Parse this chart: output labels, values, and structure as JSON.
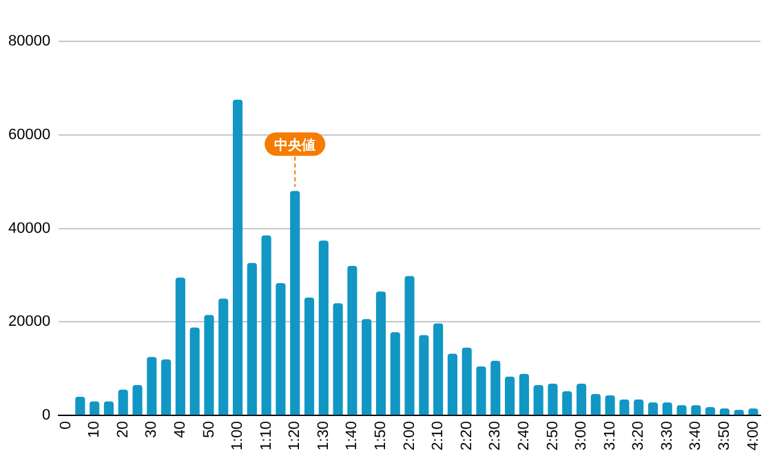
{
  "chart_data": {
    "type": "bar",
    "categories": [
      "0",
      null,
      "10",
      null,
      "20",
      null,
      "30",
      null,
      "40",
      null,
      "50",
      null,
      "1:00",
      null,
      "1:10",
      null,
      "1:20",
      null,
      "1:30",
      null,
      "1:40",
      null,
      "1:50",
      null,
      "2:00",
      null,
      "2:10",
      null,
      "2:20",
      null,
      "2:30",
      null,
      "2:40",
      null,
      "2:50",
      null,
      "3:00",
      null,
      "3:10",
      null,
      "3:20",
      null,
      "3:30",
      null,
      "3:40",
      null,
      "3:50",
      null,
      "4:00"
    ],
    "values": [
      0,
      4000,
      3000,
      3000,
      5500,
      6500,
      12500,
      12000,
      29500,
      18800,
      21500,
      25000,
      67500,
      32600,
      38500,
      28300,
      48000,
      25200,
      37400,
      24000,
      32000,
      20600,
      26500,
      17800,
      29800,
      17200,
      19700,
      13200,
      14500,
      10500,
      11700,
      8300,
      8900,
      6500,
      6800,
      5200,
      6800,
      4600,
      4300,
      3400,
      3400,
      2800,
      2800,
      2200,
      2200,
      1800,
      1500,
      1200,
      1500
    ],
    "color": "#1296c4",
    "ylim": [
      0,
      80000
    ],
    "yticks": [
      0,
      20000,
      40000,
      60000,
      80000
    ],
    "grid": "y",
    "legend": false,
    "annotations": [
      {
        "text": "中央値",
        "x": "1:20",
        "y": 48000
      }
    ]
  }
}
